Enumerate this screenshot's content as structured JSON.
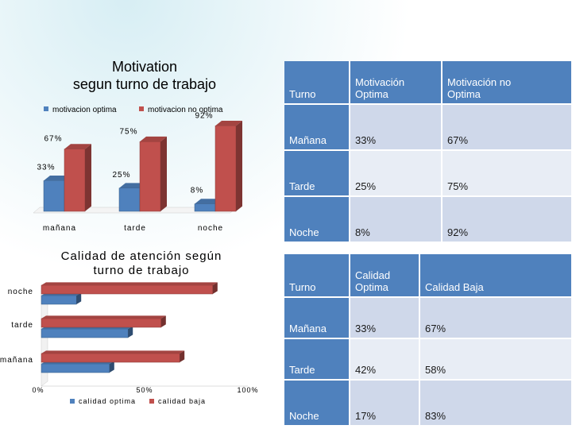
{
  "chart_data": [
    {
      "type": "bar",
      "title": "Motivation\nsegun turno de trabajo",
      "categories": [
        "mañana",
        "tarde",
        "noche"
      ],
      "series": [
        {
          "name": "motivacion optima",
          "values": [
            33,
            25,
            8
          ],
          "labels": [
            "33%",
            "25%",
            "8%"
          ],
          "color": "#4f81bd"
        },
        {
          "name": "motivacion no optima",
          "values": [
            67,
            75,
            92
          ],
          "labels": [
            "67%",
            "75%",
            "92%"
          ],
          "color": "#c0504d"
        }
      ],
      "ylim": [
        0,
        100
      ],
      "legend": "top",
      "grid": false
    },
    {
      "type": "bar",
      "orientation": "horizontal",
      "title": "Calidad de atención según\nturno de trabajo",
      "categories": [
        "mañana",
        "tarde",
        "noche"
      ],
      "series": [
        {
          "name": "calidad optima",
          "values": [
            33,
            42,
            17
          ],
          "color": "#4f81bd"
        },
        {
          "name": "calidad baja",
          "values": [
            67,
            58,
            83
          ],
          "color": "#c0504d"
        }
      ],
      "x_ticks": [
        "0%",
        "50%",
        "100%"
      ],
      "xlim": [
        0,
        100
      ],
      "legend": "bottom",
      "grid": false
    }
  ],
  "table1": {
    "header": [
      "Turno",
      "Motivación\nOptima",
      "Motivación no\nOptima"
    ],
    "rows": [
      [
        "Mañana",
        "33%",
        "67%"
      ],
      [
        "Tarde",
        "25%",
        "75%"
      ],
      [
        "Noche",
        "8%",
        "92%"
      ]
    ]
  },
  "table2": {
    "header": [
      "Turno",
      "Calidad\nOptima",
      "Calidad  Baja"
    ],
    "rows": [
      [
        "Mañana",
        "33%",
        "67%"
      ],
      [
        "Tarde",
        "42%",
        "58%"
      ],
      [
        "Noche",
        "17%",
        "83%"
      ]
    ]
  }
}
